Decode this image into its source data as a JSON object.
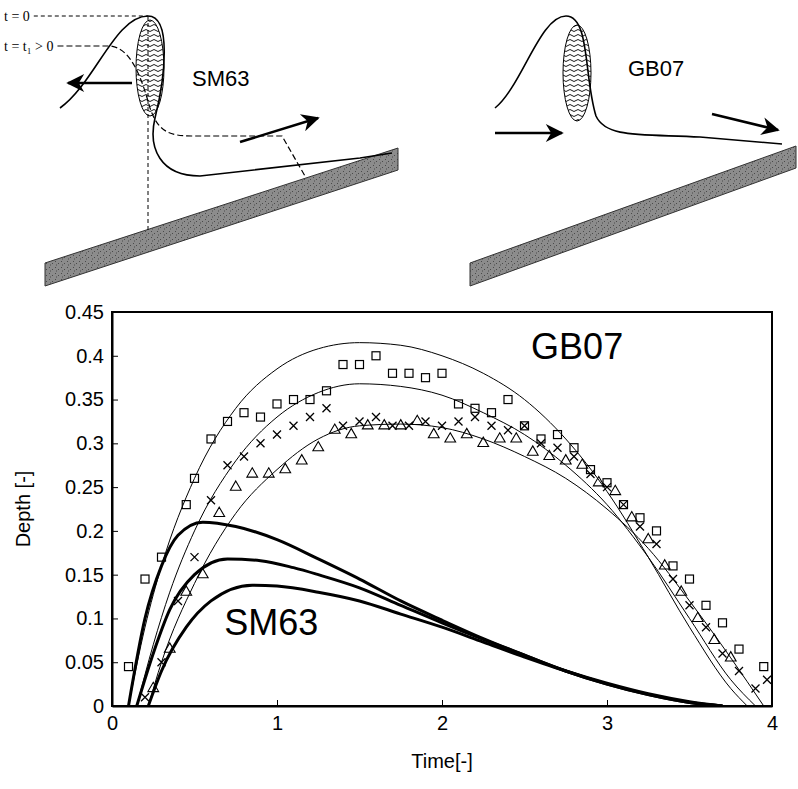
{
  "diagrams": [
    {
      "label": "SM63",
      "time_labels": [
        "t = 0",
        "t = t₁ > 0"
      ]
    },
    {
      "label": "GB07"
    }
  ],
  "chart_data": {
    "type": "line",
    "x_label": "Time[-]",
    "y_label": "Depth [-]",
    "xlim": [
      0,
      4
    ],
    "xticks": [
      0,
      1,
      2,
      3,
      4
    ],
    "ylim": [
      0,
      0.45
    ],
    "yticks": [
      0,
      0.05,
      0.1,
      0.15,
      0.2,
      0.25,
      0.3,
      0.35,
      0.4,
      0.45
    ],
    "annotations": [
      "GB07",
      "SM63"
    ],
    "series": [
      {
        "type": "line",
        "color": "#000000",
        "line_style": "thin",
        "x": [
          0.1,
          0.2,
          0.3,
          0.5,
          0.75,
          1.0,
          1.25,
          1.5,
          1.75,
          2.0,
          2.25,
          2.5,
          2.75,
          3.0,
          3.25,
          3.5,
          3.75,
          3.85
        ],
        "values": [
          0,
          0.09,
          0.16,
          0.26,
          0.34,
          0.385,
          0.408,
          0.415,
          0.412,
          0.4,
          0.38,
          0.35,
          0.305,
          0.245,
          0.17,
          0.09,
          0.02,
          0
        ]
      },
      {
        "type": "line",
        "color": "#000000",
        "line_style": "thin",
        "x": [
          0.15,
          0.25,
          0.35,
          0.5,
          0.75,
          1.0,
          1.25,
          1.5,
          1.75,
          2.0,
          2.25,
          2.5,
          2.75,
          3.0,
          3.25,
          3.5,
          3.75,
          3.9
        ],
        "values": [
          0,
          0.07,
          0.13,
          0.2,
          0.28,
          0.33,
          0.358,
          0.368,
          0.365,
          0.355,
          0.335,
          0.31,
          0.275,
          0.23,
          0.17,
          0.1,
          0.03,
          0
        ]
      },
      {
        "type": "line",
        "color": "#000000",
        "line_style": "thin",
        "x": [
          0.22,
          0.3,
          0.5,
          0.75,
          1.0,
          1.25,
          1.5,
          1.75,
          2.0,
          2.25,
          2.5,
          2.75,
          3.0,
          3.25,
          3.5,
          3.75,
          3.95
        ],
        "values": [
          0,
          0.05,
          0.14,
          0.22,
          0.27,
          0.305,
          0.32,
          0.322,
          0.318,
          0.305,
          0.285,
          0.26,
          0.225,
          0.18,
          0.12,
          0.055,
          0
        ]
      },
      {
        "type": "scatter",
        "color": "#000000",
        "marker": "square",
        "x": [
          0.1,
          0.2,
          0.3,
          0.45,
          0.5,
          0.6,
          0.7,
          0.8,
          0.9,
          1.0,
          1.1,
          1.2,
          1.3,
          1.4,
          1.5,
          1.6,
          1.7,
          1.8,
          1.9,
          2.0,
          2.1,
          2.2,
          2.3,
          2.4,
          2.5,
          2.6,
          2.7,
          2.8,
          2.9,
          3.0,
          3.1,
          3.2,
          3.3,
          3.4,
          3.5,
          3.6,
          3.7,
          3.8,
          3.95
        ],
        "values": [
          0.045,
          0.145,
          0.17,
          0.23,
          0.26,
          0.305,
          0.325,
          0.335,
          0.33,
          0.345,
          0.35,
          0.35,
          0.36,
          0.39,
          0.39,
          0.4,
          0.38,
          0.38,
          0.375,
          0.38,
          0.345,
          0.34,
          0.335,
          0.35,
          0.32,
          0.305,
          0.31,
          0.295,
          0.27,
          0.255,
          0.23,
          0.215,
          0.2,
          0.16,
          0.145,
          0.115,
          0.095,
          0.065,
          0.045
        ]
      },
      {
        "type": "scatter",
        "color": "#000000",
        "marker": "x",
        "x": [
          0.2,
          0.3,
          0.4,
          0.5,
          0.6,
          0.7,
          0.8,
          0.9,
          1.0,
          1.1,
          1.2,
          1.3,
          1.4,
          1.5,
          1.6,
          1.7,
          1.8,
          1.9,
          2.0,
          2.1,
          2.2,
          2.3,
          2.4,
          2.5,
          2.6,
          2.7,
          2.8,
          2.9,
          3.0,
          3.1,
          3.2,
          3.3,
          3.4,
          3.5,
          3.6,
          3.7,
          3.8,
          3.9,
          3.97
        ],
        "values": [
          0.01,
          0.05,
          0.12,
          0.17,
          0.235,
          0.275,
          0.285,
          0.3,
          0.31,
          0.32,
          0.33,
          0.34,
          0.32,
          0.325,
          0.33,
          0.32,
          0.32,
          0.325,
          0.32,
          0.325,
          0.33,
          0.32,
          0.315,
          0.32,
          0.3,
          0.295,
          0.285,
          0.265,
          0.25,
          0.23,
          0.205,
          0.185,
          0.145,
          0.115,
          0.09,
          0.06,
          0.04,
          0.02,
          0.03
        ]
      },
      {
        "type": "scatter",
        "color": "#000000",
        "marker": "triangle",
        "x": [
          0.25,
          0.35,
          0.45,
          0.55,
          0.65,
          0.75,
          0.85,
          0.95,
          1.05,
          1.15,
          1.25,
          1.35,
          1.45,
          1.55,
          1.65,
          1.75,
          1.85,
          1.95,
          2.05,
          2.15,
          2.25,
          2.35,
          2.45,
          2.55,
          2.65,
          2.75,
          2.85,
          2.95,
          3.05,
          3.15,
          3.25,
          3.35,
          3.45,
          3.55,
          3.65,
          3.75
        ],
        "values": [
          0.02,
          0.065,
          0.13,
          0.15,
          0.22,
          0.25,
          0.265,
          0.265,
          0.27,
          0.28,
          0.295,
          0.315,
          0.31,
          0.32,
          0.32,
          0.32,
          0.325,
          0.31,
          0.305,
          0.31,
          0.3,
          0.305,
          0.305,
          0.29,
          0.285,
          0.28,
          0.275,
          0.255,
          0.245,
          0.215,
          0.19,
          0.16,
          0.13,
          0.1,
          0.075,
          0.055
        ]
      },
      {
        "type": "line",
        "color": "#000000",
        "line_style": "thick",
        "x": [
          0.1,
          0.2,
          0.3,
          0.4,
          0.55,
          0.75,
          1.0,
          1.25,
          1.5,
          1.75,
          2.0,
          2.25,
          2.5,
          2.75,
          3.0,
          3.25,
          3.5,
          3.7
        ],
        "values": [
          0,
          0.1,
          0.16,
          0.195,
          0.21,
          0.205,
          0.19,
          0.168,
          0.145,
          0.12,
          0.098,
          0.077,
          0.058,
          0.04,
          0.025,
          0.013,
          0.004,
          0
        ]
      },
      {
        "type": "line",
        "color": "#000000",
        "line_style": "thick",
        "x": [
          0.15,
          0.25,
          0.35,
          0.5,
          0.7,
          0.9,
          1.1,
          1.25,
          1.5,
          1.75,
          2.0,
          2.25,
          2.5,
          2.75,
          3.0,
          3.25,
          3.5,
          3.7
        ],
        "values": [
          0,
          0.06,
          0.11,
          0.15,
          0.168,
          0.166,
          0.158,
          0.15,
          0.135,
          0.115,
          0.095,
          0.076,
          0.058,
          0.04,
          0.025,
          0.013,
          0.004,
          0
        ]
      },
      {
        "type": "line",
        "color": "#000000",
        "line_style": "thick",
        "x": [
          0.22,
          0.3,
          0.45,
          0.6,
          0.85,
          1.0,
          1.25,
          1.5,
          1.75,
          2.0,
          2.25,
          2.5,
          2.75,
          3.0,
          3.25,
          3.5,
          3.7
        ],
        "values": [
          0,
          0.04,
          0.09,
          0.12,
          0.138,
          0.137,
          0.13,
          0.12,
          0.105,
          0.09,
          0.073,
          0.056,
          0.04,
          0.026,
          0.014,
          0.005,
          0
        ]
      }
    ]
  }
}
